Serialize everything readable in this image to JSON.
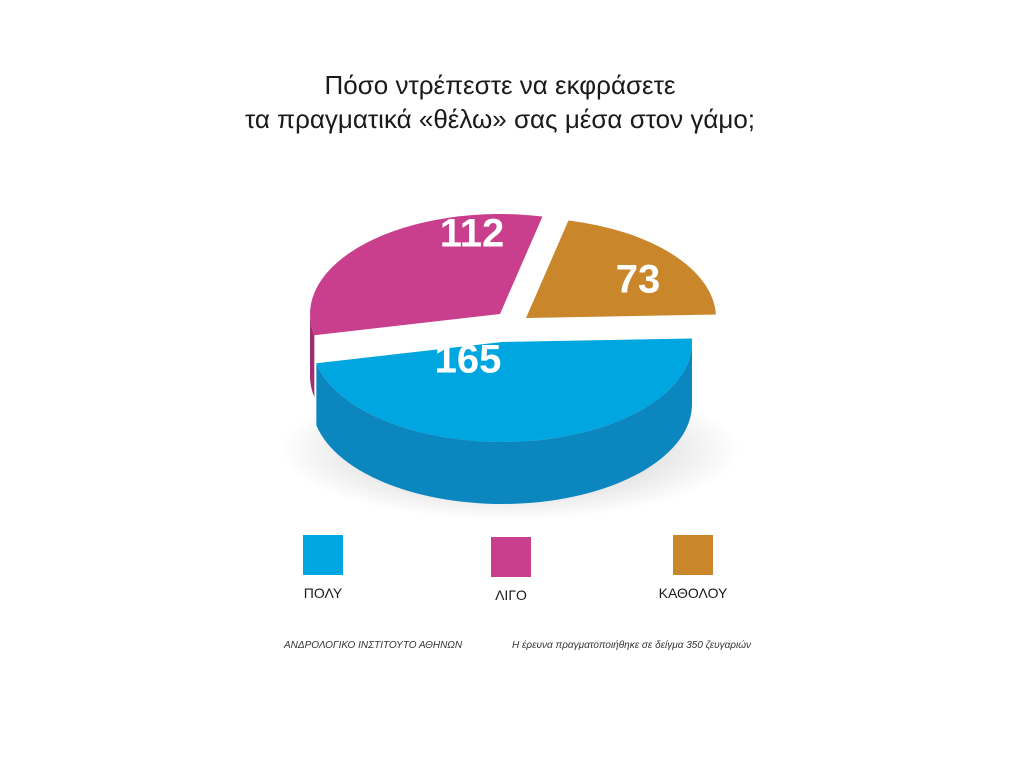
{
  "title_lines": [
    "Πόσο ντρέπεστε να εκφράσετε",
    "τα πραγματικά «θέλω» σας μέσα στον γάμο;"
  ],
  "chart_data": {
    "type": "pie",
    "title": "Πόσο ντρέπεστε να εκφράσετε τα πραγματικά «θέλω» σας μέσα στον γάμο;",
    "categories": [
      "ΠΟΛΥ",
      "ΛΙΓΟ",
      "ΚΑΘΟΛΟΥ"
    ],
    "values": [
      165,
      112,
      73
    ],
    "value_labels": [
      "165",
      "112",
      "73"
    ],
    "colors": [
      "#00a6e0",
      "#c93f8e",
      "#c9862a"
    ],
    "side_colors": [
      "#0b86bf",
      "#9e2f70",
      "#9c6516"
    ],
    "legend_position": "bottom"
  },
  "legend": [
    {
      "label": "ΠΟΛΥ",
      "color": "#00a6e0"
    },
    {
      "label": "ΛΙΓΟ",
      "color": "#c93f8e"
    },
    {
      "label": "ΚΑΘΟΛΟΥ",
      "color": "#c9862a"
    }
  ],
  "footer": {
    "source": "ΑΝΔΡΟΛΟΓΙΚΟ ΙΝΣΤΙΤΟΥΤΟ ΑΘΗΝΩΝ",
    "note": "Η έρευνα πραγματοποιήθηκε σε δείγμα 350 ζευγαριών"
  }
}
